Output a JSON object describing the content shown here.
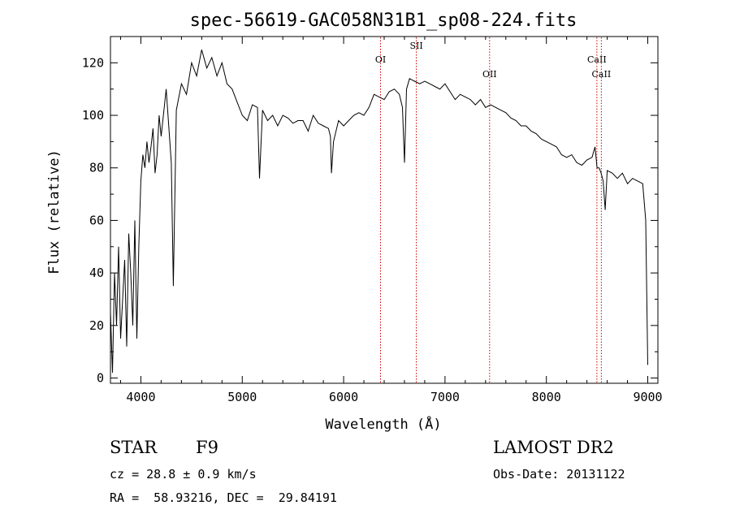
{
  "chart_data": {
    "type": "line",
    "title": "spec-56619-GAC058N31B1_sp08-224.fits",
    "xlabel": "Wavelength (Å)",
    "ylabel": "Flux (relative)",
    "xlim": [
      3700,
      9100
    ],
    "ylim": [
      -2,
      130
    ],
    "x_ticks": [
      4000,
      5000,
      6000,
      7000,
      8000,
      9000
    ],
    "y_ticks": [
      0,
      20,
      40,
      60,
      80,
      100,
      120
    ],
    "grid": false,
    "series": [
      {
        "x": [
          3700,
          3720,
          3740,
          3760,
          3780,
          3800,
          3820,
          3840,
          3860,
          3880,
          3900,
          3920,
          3940,
          3960,
          3980,
          4000,
          4020,
          4040,
          4060,
          4080,
          4100,
          4120,
          4140,
          4160,
          4180,
          4200,
          4250,
          4300,
          4320,
          4350,
          4400,
          4450,
          4500,
          4550,
          4600,
          4650,
          4700,
          4750,
          4800,
          4850,
          4900,
          4950,
          5000,
          5050,
          5100,
          5150,
          5170,
          5200,
          5250,
          5300,
          5350,
          5400,
          5450,
          5500,
          5550,
          5600,
          5650,
          5700,
          5750,
          5800,
          5850,
          5870,
          5880,
          5900,
          5950,
          6000,
          6050,
          6100,
          6150,
          6200,
          6250,
          6300,
          6350,
          6400,
          6450,
          6500,
          6550,
          6580,
          6600,
          6620,
          6650,
          6700,
          6750,
          6800,
          6850,
          6900,
          6950,
          7000,
          7050,
          7100,
          7150,
          7200,
          7250,
          7300,
          7350,
          7400,
          7450,
          7500,
          7550,
          7600,
          7650,
          7700,
          7750,
          7800,
          7850,
          7900,
          7950,
          8000,
          8050,
          8100,
          8150,
          8200,
          8250,
          8300,
          8350,
          8400,
          8450,
          8480,
          8500,
          8520,
          8540,
          8560,
          8580,
          8600,
          8650,
          8700,
          8750,
          8800,
          8850,
          8900,
          8950,
          8980,
          9000
        ],
        "y": [
          25,
          2,
          40,
          20,
          50,
          15,
          30,
          45,
          12,
          55,
          40,
          20,
          60,
          15,
          50,
          75,
          85,
          80,
          90,
          82,
          88,
          95,
          78,
          85,
          100,
          92,
          110,
          82,
          35,
          102,
          112,
          108,
          120,
          115,
          125,
          118,
          122,
          115,
          120,
          112,
          110,
          105,
          100,
          98,
          104,
          103,
          76,
          102,
          98,
          100,
          96,
          100,
          99,
          97,
          98,
          98,
          94,
          100,
          97,
          96,
          95,
          92,
          78,
          90,
          98,
          96,
          98,
          100,
          101,
          100,
          103,
          108,
          107,
          106,
          109,
          110,
          108,
          103,
          82,
          110,
          114,
          113,
          112,
          113,
          112,
          111,
          110,
          112,
          109,
          106,
          108,
          107,
          106,
          104,
          106,
          103,
          104,
          103,
          102,
          101,
          99,
          98,
          96,
          96,
          94,
          93,
          91,
          90,
          89,
          88,
          85,
          84,
          85,
          82,
          81,
          83,
          84,
          88,
          80,
          80,
          78,
          75,
          64,
          79,
          78,
          76,
          78,
          74,
          76,
          75,
          74,
          60,
          5
        ]
      }
    ],
    "lines": [
      {
        "label": "OI",
        "wavelength": 6364
      },
      {
        "label": "SII",
        "wavelength": 6717
      },
      {
        "label": "OII",
        "wavelength": 7440
      },
      {
        "label": "CaII",
        "wavelength": 8498
      },
      {
        "label": "CaII",
        "wavelength": 8542
      }
    ],
    "line_color": "#cc0000"
  },
  "info": {
    "obj_class": "STAR",
    "subclass": "F9",
    "cz": "cz = 28.8 ± 0.9 km/s",
    "coords": "RA =  58.93216, DEC =  29.84191",
    "survey": "LAMOST DR2",
    "obs_date": "Obs-Date: 20131122"
  }
}
